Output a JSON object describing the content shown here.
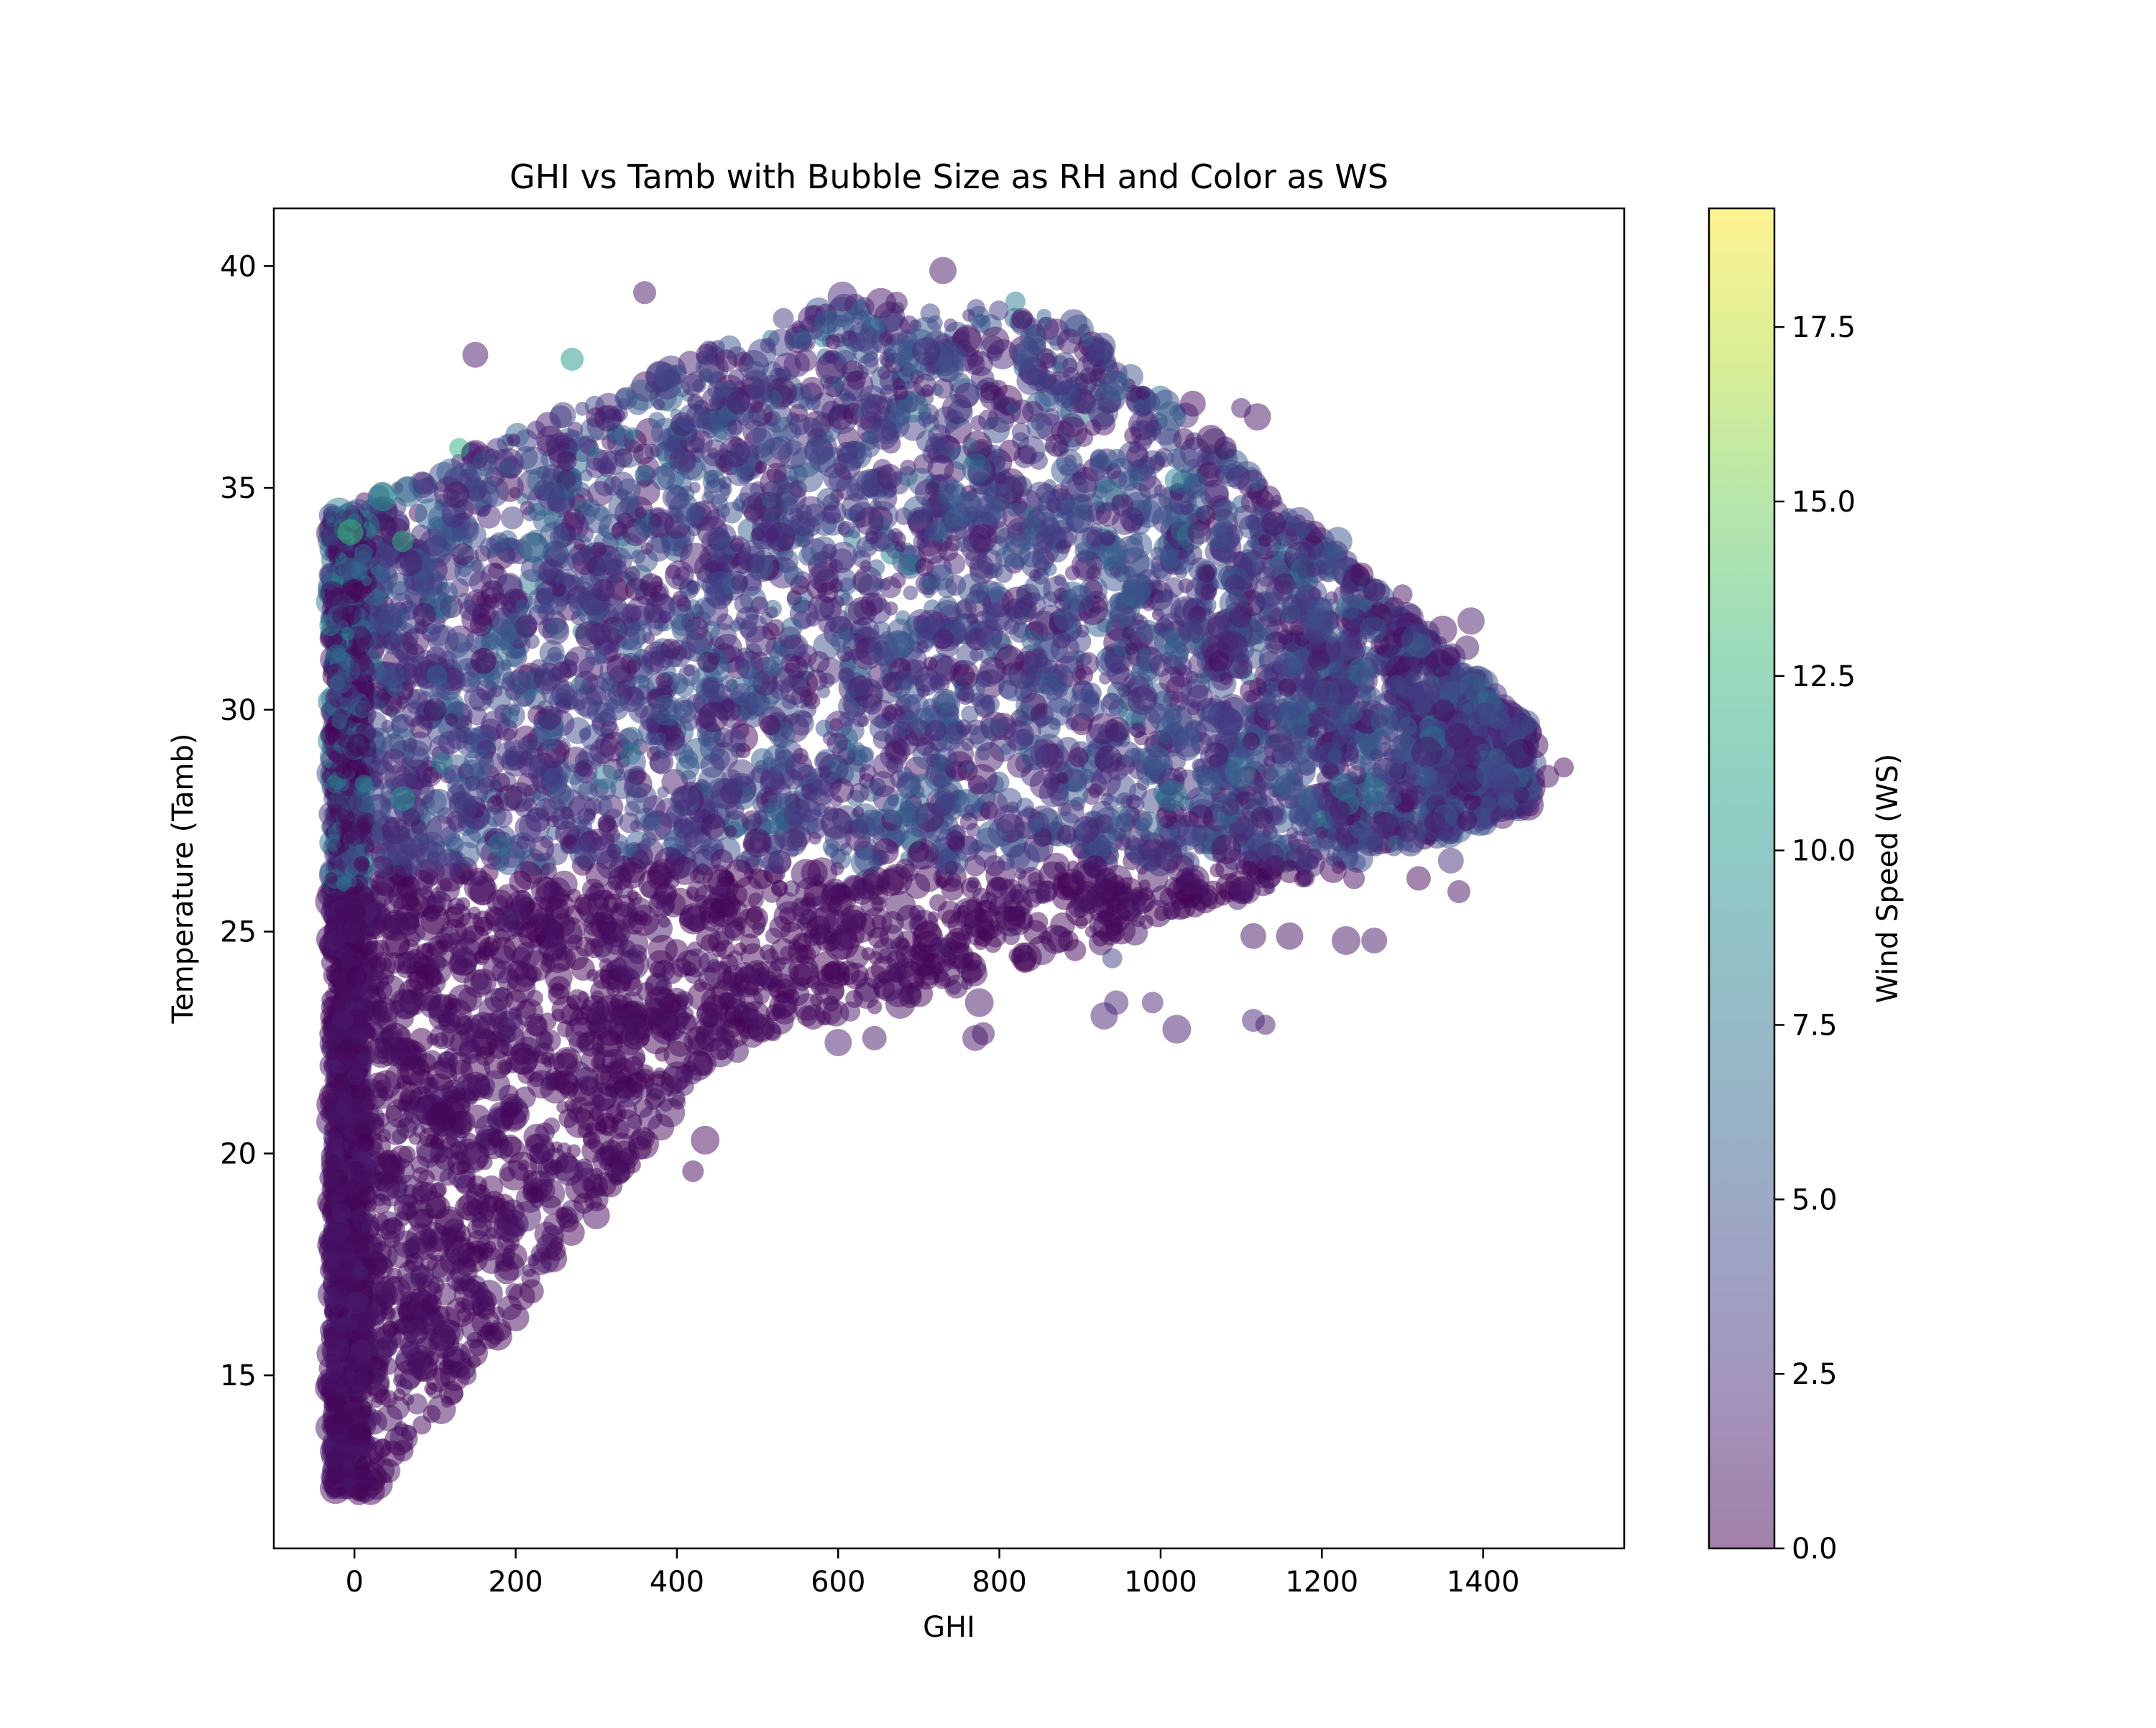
{
  "chart_data": {
    "type": "scatter",
    "title": "GHI vs Tamb with Bubble Size as RH and Color as WS",
    "xlabel": "GHI",
    "ylabel": "Temperature (Tamb)",
    "xlim": [
      -100,
      1575
    ],
    "ylim": [
      11.1,
      41.3
    ],
    "xticks": [
      0,
      200,
      400,
      600,
      800,
      1000,
      1200,
      1400
    ],
    "yticks": [
      15,
      20,
      25,
      30,
      35,
      40
    ],
    "grid": false,
    "marker_alpha": 0.5,
    "size_encoding": "RH",
    "color_encoding": "WS",
    "colorbar": {
      "label": "Wind Speed (WS)",
      "range": [
        0.0,
        19.2
      ],
      "ticks": [
        "0.0",
        "2.5",
        "5.0",
        "7.5",
        "10.0",
        "12.5",
        "15.0",
        "17.5"
      ],
      "tick_values": [
        0.0,
        2.5,
        5.0,
        7.5,
        10.0,
        12.5,
        15.0,
        17.5
      ],
      "colormap": "viridis",
      "colormap_stops": [
        "#440154",
        "#482878",
        "#3e4989",
        "#31688e",
        "#26828e",
        "#1f9e89",
        "#35b779",
        "#6ece58",
        "#b5de2b",
        "#fde725"
      ]
    },
    "points": [
      {
        "x": 1500,
        "y": 28.7,
        "ws": 0.5
      },
      {
        "x": 1480,
        "y": 28.5,
        "ws": 0.8
      },
      {
        "x": 1465,
        "y": 29.2,
        "ws": 0.6
      },
      {
        "x": 1445,
        "y": 29.0,
        "ws": 1.0
      },
      {
        "x": 1420,
        "y": 29.8,
        "ws": 5.0
      },
      {
        "x": 1380,
        "y": 31.4,
        "ws": 1.2
      },
      {
        "x": 1385,
        "y": 32.0,
        "ws": 1.5
      },
      {
        "x": 1380,
        "y": 27.5,
        "ws": 1.0
      },
      {
        "x": 1370,
        "y": 25.9,
        "ws": 0.8
      },
      {
        "x": 1360,
        "y": 26.6,
        "ws": 2.5
      },
      {
        "x": 1350,
        "y": 31.8,
        "ws": 1.0
      },
      {
        "x": 1330,
        "y": 28.5,
        "ws": 5.5
      },
      {
        "x": 1320,
        "y": 26.2,
        "ws": 0.5
      },
      {
        "x": 1310,
        "y": 27.0,
        "ws": 3.0
      },
      {
        "x": 1300,
        "y": 32.6,
        "ws": 1.0
      },
      {
        "x": 1265,
        "y": 32.7,
        "ws": 1.0
      },
      {
        "x": 1265,
        "y": 24.8,
        "ws": 1.2
      },
      {
        "x": 1230,
        "y": 24.8,
        "ws": 1.0
      },
      {
        "x": 1240,
        "y": 26.2,
        "ws": 0.8
      },
      {
        "x": 1210,
        "y": 29.0,
        "ws": 4.0
      },
      {
        "x": 1160,
        "y": 24.9,
        "ws": 0.9
      },
      {
        "x": 1130,
        "y": 22.9,
        "ws": 1.4
      },
      {
        "x": 1115,
        "y": 23.0,
        "ws": 2.0
      },
      {
        "x": 1115,
        "y": 24.9,
        "ws": 1.0
      },
      {
        "x": 1220,
        "y": 33.8,
        "ws": 5.0
      },
      {
        "x": 1180,
        "y": 33.5,
        "ws": 3.0
      },
      {
        "x": 1140,
        "y": 34.2,
        "ws": 1.0
      },
      {
        "x": 1120,
        "y": 36.6,
        "ws": 1.0
      },
      {
        "x": 1100,
        "y": 36.8,
        "ws": 1.5
      },
      {
        "x": 1080,
        "y": 35.9,
        "ws": 0.8
      },
      {
        "x": 1040,
        "y": 36.9,
        "ws": 0.7
      },
      {
        "x": 1020,
        "y": 22.8,
        "ws": 1.5
      },
      {
        "x": 990,
        "y": 23.4,
        "ws": 2.0
      },
      {
        "x": 945,
        "y": 23.4,
        "ws": 2.0
      },
      {
        "x": 930,
        "y": 23.1,
        "ws": 1.8
      },
      {
        "x": 940,
        "y": 24.4,
        "ws": 3.5
      },
      {
        "x": 780,
        "y": 22.7,
        "ws": 1.0
      },
      {
        "x": 770,
        "y": 22.6,
        "ws": 1.2
      },
      {
        "x": 775,
        "y": 23.4,
        "ws": 1.0
      },
      {
        "x": 690,
        "y": 23.6,
        "ws": 0.8
      },
      {
        "x": 645,
        "y": 22.6,
        "ws": 1.2
      },
      {
        "x": 600,
        "y": 22.5,
        "ws": 1.5
      },
      {
        "x": 615,
        "y": 23.2,
        "ws": 1.0
      },
      {
        "x": 475,
        "y": 22.3,
        "ws": 0.9
      },
      {
        "x": 450,
        "y": 22.8,
        "ws": 1.0
      },
      {
        "x": 435,
        "y": 20.3,
        "ws": 0.5
      },
      {
        "x": 420,
        "y": 19.6,
        "ws": 0.4
      },
      {
        "x": 310,
        "y": 19.3,
        "ws": 0.5
      },
      {
        "x": 300,
        "y": 18.6,
        "ws": 0.4
      },
      {
        "x": 130,
        "y": 35.9,
        "ws": 12.0
      },
      {
        "x": 270,
        "y": 37.9,
        "ws": 10.0
      },
      {
        "x": -5,
        "y": 34.0,
        "ws": 13.0
      },
      {
        "x": 35,
        "y": 34.8,
        "ws": 10.5
      },
      {
        "x": 60,
        "y": 33.8,
        "ws": 12.5
      },
      {
        "x": 60,
        "y": 28.0,
        "ws": 10.0
      },
      {
        "x": 730,
        "y": 39.9,
        "ws": 1.0
      },
      {
        "x": 820,
        "y": 39.2,
        "ws": 8.0
      },
      {
        "x": 360,
        "y": 39.4,
        "ws": 1.0
      },
      {
        "x": 150,
        "y": 38.0,
        "ws": 1.0
      },
      {
        "x": 20,
        "y": 12.4,
        "ws": 0.3
      },
      {
        "x": 60,
        "y": 13.3,
        "ws": 0.4
      },
      {
        "x": 120,
        "y": 14.6,
        "ws": 0.5
      },
      {
        "x": 200,
        "y": 16.3,
        "ws": 0.4
      },
      {
        "x": 250,
        "y": 17.8,
        "ws": 0.5
      },
      {
        "x": 100,
        "y": 30.0,
        "ws": 0.3
      },
      {
        "x": 160,
        "y": 31.1,
        "ws": 0.2
      },
      {
        "x": 500,
        "y": 27.0,
        "ws": 0.3
      },
      {
        "x": 700,
        "y": 26.8,
        "ws": 0.5
      },
      {
        "x": 600,
        "y": 32.0,
        "ws": 3.0
      },
      {
        "x": 800,
        "y": 34.8,
        "ws": 4.5
      },
      {
        "x": 400,
        "y": 36.0,
        "ws": 3.0
      },
      {
        "x": 1000,
        "y": 31.0,
        "ws": 2.5
      },
      {
        "x": 1300,
        "y": 30.4,
        "ws": 3.0
      },
      {
        "x": 1420,
        "y": 28.7,
        "ws": 4.0
      }
    ]
  }
}
